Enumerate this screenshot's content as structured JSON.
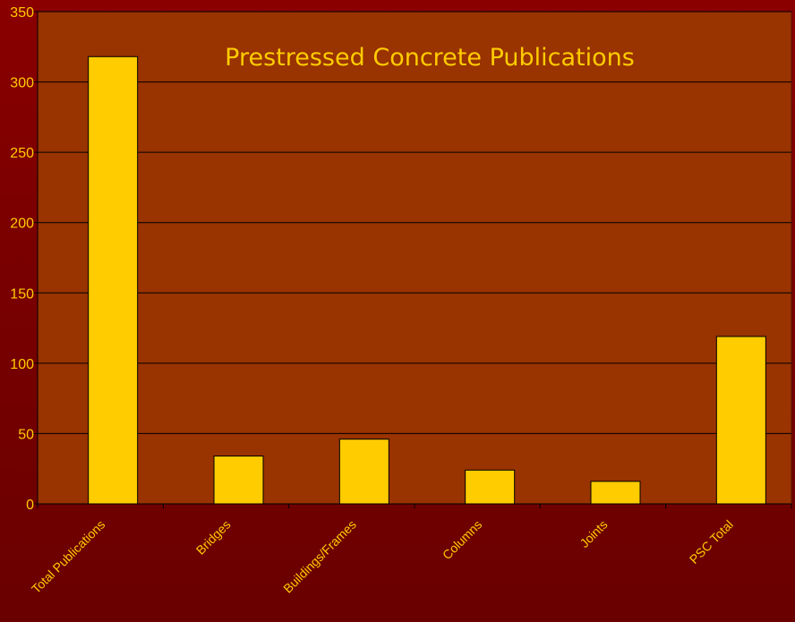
{
  "chart_data": {
    "type": "bar",
    "title": "Prestressed Concrete Publications",
    "categories": [
      "Total Publications",
      "Bridges",
      "Buildings/Frames",
      "Columns",
      "Joints",
      "PSC Total"
    ],
    "values": [
      318,
      34,
      46,
      24,
      16,
      119
    ],
    "ylim": [
      0,
      350
    ],
    "yticks": [
      0,
      50,
      100,
      150,
      200,
      250,
      300,
      350
    ],
    "grid": true,
    "legend": "none",
    "xlabel": "",
    "ylabel": ""
  },
  "colors": {
    "background": "#7a0000",
    "plot_area": "#993300",
    "bar_fill": "#ffcc00",
    "bar_stroke": "#000000",
    "text": "#ffcc00",
    "gridline": "#000000"
  }
}
